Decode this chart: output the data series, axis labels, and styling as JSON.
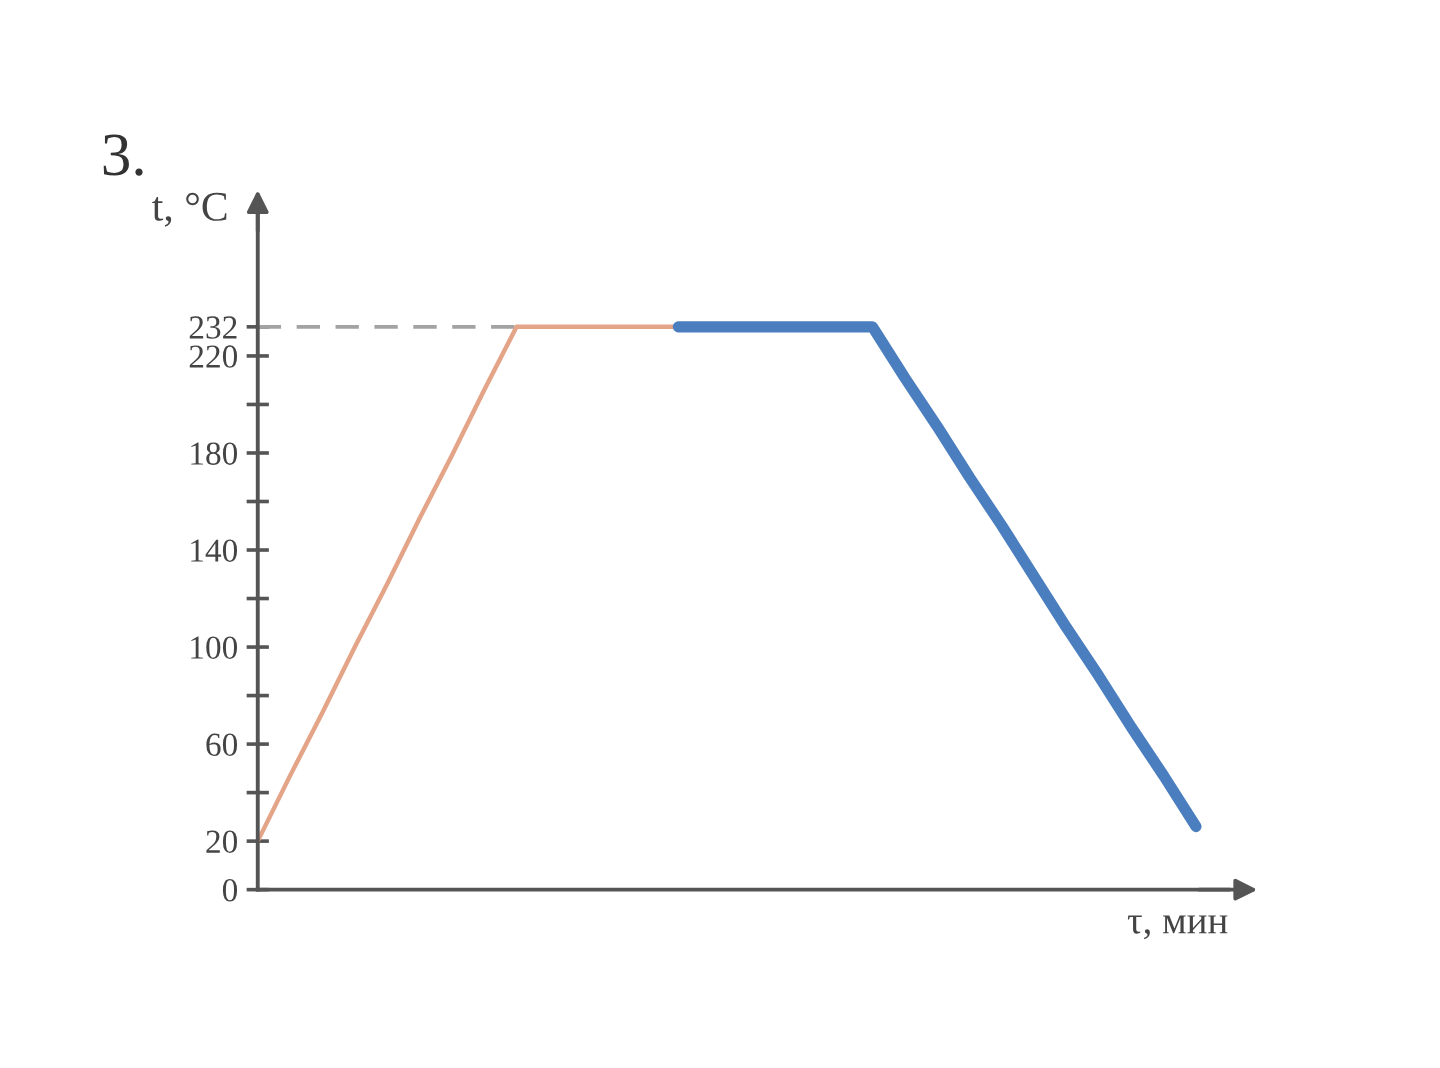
{
  "chart_data": {
    "type": "line",
    "title": "3.",
    "ylabel": "t, °C",
    "xlabel": "τ, мин",
    "line_style": "solid",
    "tick_labels": "y",
    "categories": [
      null,
      null,
      null,
      null,
      null,
      null,
      null,
      null,
      null,
      null,
      null,
      null,
      null,
      null,
      null,
      null,
      null,
      null,
      null,
      null,
      null,
      null,
      null,
      null,
      null,
      null,
      null,
      null,
      null,
      null
    ],
    "series": [
      {
        "color": "#a3a3a3",
        "line_style": "dashed",
        "values": [
          232,
          232,
          232,
          232,
          232,
          232,
          232,
          232,
          232,
          null,
          null,
          null,
          null,
          null,
          null,
          null,
          null,
          null,
          null,
          null,
          null,
          null,
          null,
          null,
          null,
          null,
          null,
          null,
          null,
          null
        ]
      },
      {
        "color": "#e4a487",
        "values": [
          20,
          47,
          73,
          100,
          126,
          153,
          179,
          206,
          232,
          232,
          232,
          232,
          232,
          232,
          null,
          null,
          null,
          null,
          null,
          null,
          null,
          null,
          null,
          null,
          null,
          null,
          null,
          null,
          null,
          null
        ]
      },
      {
        "color": "#4a7ebf",
        "values": [
          null,
          null,
          null,
          null,
          null,
          null,
          null,
          null,
          null,
          null,
          null,
          null,
          null,
          232,
          232,
          232,
          232,
          232,
          232,
          232,
          211,
          191,
          170,
          150,
          129,
          108,
          88,
          67,
          47,
          26
        ]
      }
    ],
    "ylim": [
      0,
      280
    ],
    "yticks": [
      0,
      20,
      {
        "value": 40,
        "label": null
      },
      60,
      {
        "value": 80,
        "label": null
      },
      100,
      {
        "value": 120,
        "label": null
      },
      140,
      {
        "value": 160,
        "label": null
      },
      180,
      {
        "value": 200,
        "label": null
      },
      220,
      232
    ]
  }
}
